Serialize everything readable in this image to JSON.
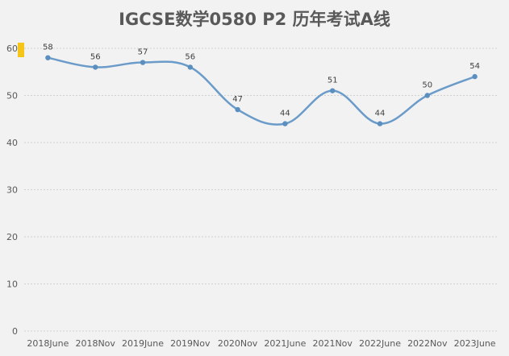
{
  "chart_data": {
    "type": "line",
    "title": "IGCSE数学0580 P2 历年考试A线",
    "categories": [
      "2018June",
      "2018Nov",
      "2019June",
      "2019Nov",
      "2020Nov",
      "2021June",
      "2021Nov",
      "2022June",
      "2022Nov",
      "2023June"
    ],
    "series": [
      {
        "values": [
          58,
          56,
          57,
          56,
          47,
          44,
          51,
          44,
          50,
          54
        ]
      }
    ],
    "ylim": [
      0,
      60
    ],
    "yticks": [
      0,
      10,
      20,
      30,
      40,
      50,
      60
    ],
    "grid": true,
    "line_style": "smooth",
    "line_color": "#6a9bc9",
    "marker_color": "#5b8fc0",
    "highlight_color": "#f5c518",
    "data_labels": true
  }
}
